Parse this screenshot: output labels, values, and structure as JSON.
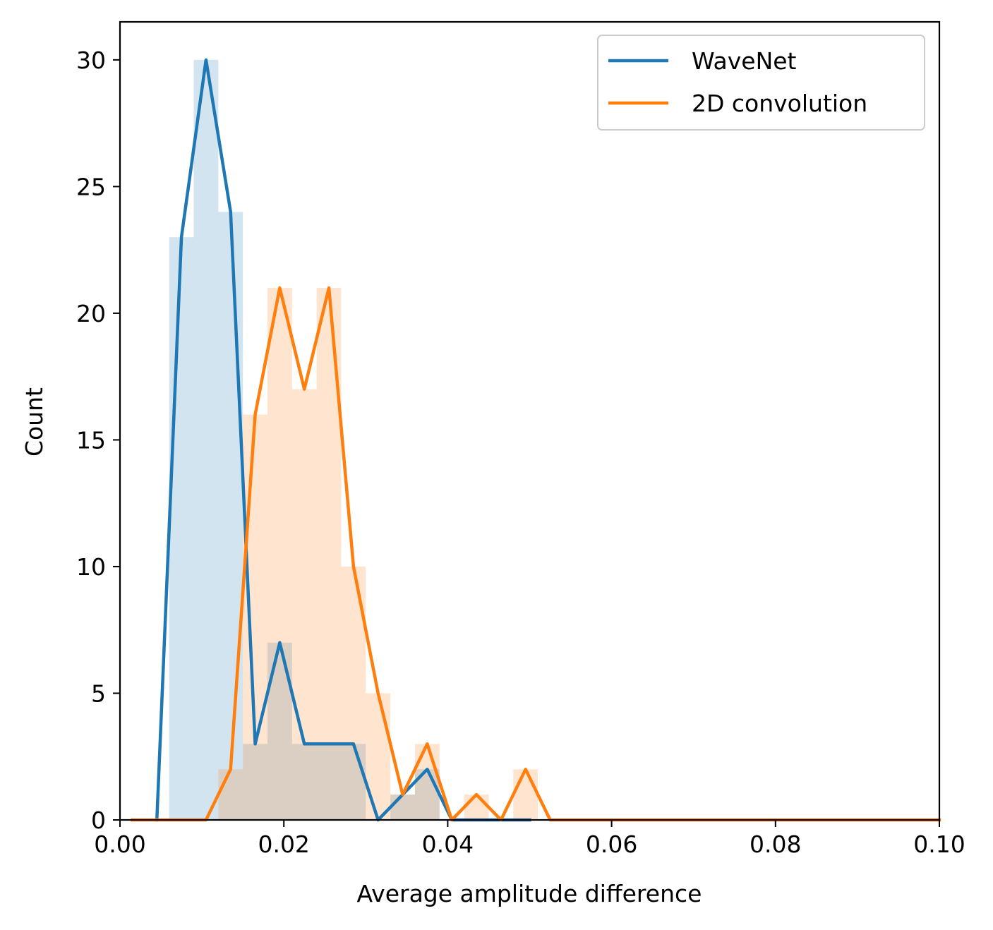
{
  "chart_data": {
    "type": "histogram",
    "xlabel": "Average amplitude difference",
    "ylabel": "Count",
    "xlim": [
      0.0,
      0.1
    ],
    "ylim": [
      0,
      31.5
    ],
    "x_ticks": [
      {
        "value": 0.0,
        "label": "0.00"
      },
      {
        "value": 0.02,
        "label": "0.02"
      },
      {
        "value": 0.04,
        "label": "0.04"
      },
      {
        "value": 0.06,
        "label": "0.06"
      },
      {
        "value": 0.08,
        "label": "0.08"
      },
      {
        "value": 0.1,
        "label": "0.10"
      }
    ],
    "y_ticks": [
      {
        "value": 0,
        "label": "0"
      },
      {
        "value": 5,
        "label": "5"
      },
      {
        "value": 10,
        "label": "10"
      },
      {
        "value": 15,
        "label": "15"
      },
      {
        "value": 20,
        "label": "20"
      },
      {
        "value": 25,
        "label": "25"
      },
      {
        "value": 30,
        "label": "30"
      }
    ],
    "grid": false,
    "legend_position": "upper right",
    "series": [
      {
        "name": "WaveNet",
        "color": "#1f77b4",
        "fill_color": "#1f77b4",
        "bins": [
          {
            "x0": 0.006,
            "x1": 0.009,
            "count": 23
          },
          {
            "x0": 0.009,
            "x1": 0.012,
            "count": 30
          },
          {
            "x0": 0.012,
            "x1": 0.015,
            "count": 24
          },
          {
            "x0": 0.015,
            "x1": 0.018,
            "count": 3
          },
          {
            "x0": 0.018,
            "x1": 0.021,
            "count": 7
          },
          {
            "x0": 0.021,
            "x1": 0.024,
            "count": 3
          },
          {
            "x0": 0.024,
            "x1": 0.027,
            "count": 3
          },
          {
            "x0": 0.027,
            "x1": 0.03,
            "count": 3
          },
          {
            "x0": 0.033,
            "x1": 0.036,
            "count": 1
          },
          {
            "x0": 0.036,
            "x1": 0.039,
            "count": 2
          }
        ],
        "line": [
          {
            "x": 0.0045,
            "y": 0
          },
          {
            "x": 0.0075,
            "y": 23
          },
          {
            "x": 0.0105,
            "y": 30
          },
          {
            "x": 0.0135,
            "y": 24
          },
          {
            "x": 0.0165,
            "y": 3
          },
          {
            "x": 0.0195,
            "y": 7
          },
          {
            "x": 0.0225,
            "y": 3
          },
          {
            "x": 0.0255,
            "y": 3
          },
          {
            "x": 0.0285,
            "y": 3
          },
          {
            "x": 0.0315,
            "y": 0
          },
          {
            "x": 0.0345,
            "y": 1
          },
          {
            "x": 0.0375,
            "y": 2
          },
          {
            "x": 0.0405,
            "y": 0
          },
          {
            "x": 0.05,
            "y": 0
          }
        ]
      },
      {
        "name": "2D convolution",
        "color": "#ff7f0e",
        "fill_color": "#ff7f0e",
        "bins": [
          {
            "x0": 0.012,
            "x1": 0.015,
            "count": 2
          },
          {
            "x0": 0.015,
            "x1": 0.018,
            "count": 16
          },
          {
            "x0": 0.018,
            "x1": 0.021,
            "count": 21
          },
          {
            "x0": 0.021,
            "x1": 0.024,
            "count": 17
          },
          {
            "x0": 0.024,
            "x1": 0.027,
            "count": 21
          },
          {
            "x0": 0.027,
            "x1": 0.03,
            "count": 10
          },
          {
            "x0": 0.03,
            "x1": 0.033,
            "count": 5
          },
          {
            "x0": 0.033,
            "x1": 0.036,
            "count": 1
          },
          {
            "x0": 0.036,
            "x1": 0.039,
            "count": 3
          },
          {
            "x0": 0.042,
            "x1": 0.045,
            "count": 1
          },
          {
            "x0": 0.048,
            "x1": 0.051,
            "count": 2
          }
        ],
        "line": [
          {
            "x": 0.0015,
            "y": 0
          },
          {
            "x": 0.0105,
            "y": 0
          },
          {
            "x": 0.0135,
            "y": 2
          },
          {
            "x": 0.0165,
            "y": 16
          },
          {
            "x": 0.0195,
            "y": 21
          },
          {
            "x": 0.0225,
            "y": 17
          },
          {
            "x": 0.0255,
            "y": 21
          },
          {
            "x": 0.0285,
            "y": 10
          },
          {
            "x": 0.0315,
            "y": 5
          },
          {
            "x": 0.0345,
            "y": 1
          },
          {
            "x": 0.0375,
            "y": 3
          },
          {
            "x": 0.0405,
            "y": 0
          },
          {
            "x": 0.0435,
            "y": 1
          },
          {
            "x": 0.0465,
            "y": 0
          },
          {
            "x": 0.0495,
            "y": 2
          },
          {
            "x": 0.0525,
            "y": 0
          },
          {
            "x": 0.1,
            "y": 0
          }
        ]
      }
    ]
  }
}
